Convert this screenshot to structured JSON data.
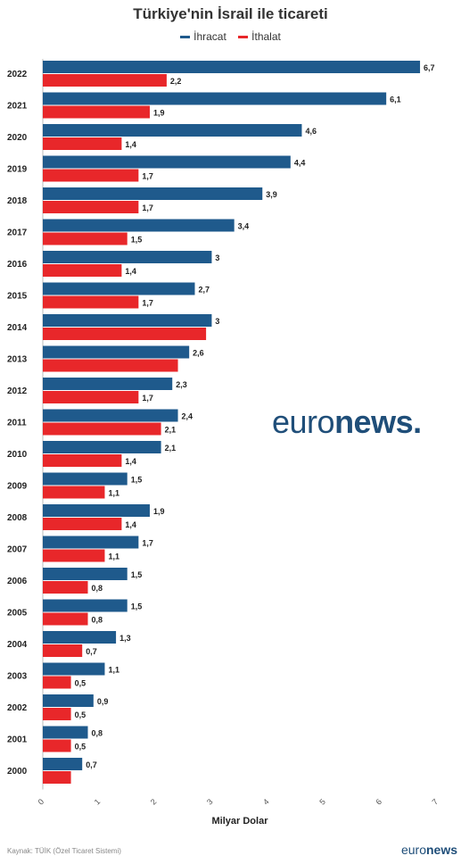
{
  "chart_data": {
    "type": "bar",
    "orientation": "horizontal",
    "title": "Türkiye'nin İsrail ile ticareti",
    "xlabel": "Milyar Dolar",
    "xlim": [
      0,
      7
    ],
    "xticks": [
      "0",
      "1",
      "2",
      "3",
      "4",
      "5",
      "6",
      "7"
    ],
    "legend_position": "top-center",
    "categories": [
      "2022",
      "2021",
      "2020",
      "2019",
      "2018",
      "2017",
      "2016",
      "2015",
      "2014",
      "2013",
      "2012",
      "2011",
      "2010",
      "2009",
      "2008",
      "2007",
      "2006",
      "2005",
      "2004",
      "2003",
      "2002",
      "2001",
      "2000"
    ],
    "series": [
      {
        "name": "İhracat",
        "color": "#1f5a8c",
        "values": [
          6.7,
          6.1,
          4.6,
          4.4,
          3.9,
          3.4,
          3,
          2.7,
          3,
          2.6,
          2.3,
          2.4,
          2.1,
          1.5,
          1.9,
          1.7,
          1.5,
          1.5,
          1.3,
          1.1,
          0.9,
          0.8,
          0.7
        ],
        "labels": [
          "6,7",
          "6,1",
          "4,6",
          "4,4",
          "3,9",
          "3,4",
          "3",
          "2,7",
          "3",
          "2,6",
          "2,3",
          "2,4",
          "2,1",
          "1,5",
          "1,9",
          "1,7",
          "1,5",
          "1,5",
          "1,3",
          "1,1",
          "0,9",
          "0,8",
          "0,7"
        ]
      },
      {
        "name": "İthalat",
        "color": "#e8272a",
        "values": [
          2.2,
          1.9,
          1.4,
          1.7,
          1.7,
          1.5,
          1.4,
          1.7,
          2.9,
          2.4,
          1.7,
          2.1,
          1.4,
          1.1,
          1.4,
          1.1,
          0.8,
          0.8,
          0.7,
          0.5,
          0.5,
          0.5,
          0.5
        ],
        "labels": [
          "2,2",
          "1,9",
          "1,4",
          "1,7",
          "1,7",
          "1,5",
          "1,4",
          "1,7",
          "",
          "",
          "1,7",
          "2,1",
          "1,4",
          "1,1",
          "1,4",
          "1,1",
          "0,8",
          "0,8",
          "0,7",
          "0,5",
          "0,5",
          "0,5",
          ""
        ]
      }
    ]
  },
  "source": "Kaynak: TÜİK (Özel Ticaret Sistemi)",
  "brand": {
    "light": "euro",
    "bold": "news."
  },
  "brand_small": {
    "light": "euro",
    "bold": "news"
  }
}
